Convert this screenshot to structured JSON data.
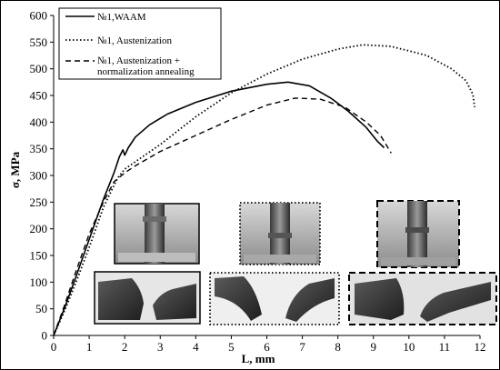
{
  "chart_data": {
    "type": "line",
    "title": "",
    "xlabel": "L, mm",
    "ylabel": "σ, MPa",
    "xlim": [
      0,
      12
    ],
    "ylim": [
      0,
      600
    ],
    "x_ticks": [
      0,
      1,
      2,
      3,
      4,
      5,
      6,
      7,
      8,
      9,
      10,
      11,
      12
    ],
    "y_ticks": [
      0,
      50,
      100,
      150,
      200,
      250,
      300,
      350,
      400,
      450,
      500,
      550,
      600
    ],
    "grid": false,
    "legend_position": "top-left",
    "series": [
      {
        "name": "№1,WAAM",
        "style": "solid",
        "points": [
          [
            0,
            0
          ],
          [
            0.3,
            50
          ],
          [
            0.6,
            105
          ],
          [
            1.0,
            180
          ],
          [
            1.4,
            255
          ],
          [
            1.7,
            305
          ],
          [
            1.85,
            335
          ],
          [
            1.95,
            348
          ],
          [
            2.0,
            338
          ],
          [
            2.1,
            352
          ],
          [
            2.3,
            372
          ],
          [
            2.7,
            395
          ],
          [
            3.2,
            415
          ],
          [
            4.0,
            437
          ],
          [
            5.0,
            458
          ],
          [
            6.0,
            471
          ],
          [
            6.6,
            475
          ],
          [
            7.2,
            468
          ],
          [
            7.8,
            445
          ],
          [
            8.3,
            420
          ],
          [
            8.8,
            390
          ],
          [
            9.1,
            365
          ],
          [
            9.3,
            352
          ]
        ]
      },
      {
        "name": "№1, Austenization",
        "style": "dotted",
        "points": [
          [
            0,
            0
          ],
          [
            0.3,
            45
          ],
          [
            0.6,
            95
          ],
          [
            1.0,
            165
          ],
          [
            1.4,
            240
          ],
          [
            1.8,
            295
          ],
          [
            2.0,
            312
          ],
          [
            2.5,
            335
          ],
          [
            3.0,
            358
          ],
          [
            4.0,
            410
          ],
          [
            5.0,
            455
          ],
          [
            6.0,
            490
          ],
          [
            7.0,
            518
          ],
          [
            8.0,
            537
          ],
          [
            8.7,
            545
          ],
          [
            9.5,
            542
          ],
          [
            10.5,
            525
          ],
          [
            11.2,
            500
          ],
          [
            11.6,
            478
          ],
          [
            11.8,
            452
          ],
          [
            11.85,
            428
          ]
        ]
      },
      {
        "name": "№1, Austenization + normalization annealing",
        "name_lines": [
          "№1, Austenization +",
          "normalization annealing"
        ],
        "style": "dashed",
        "points": [
          [
            0,
            0
          ],
          [
            0.3,
            55
          ],
          [
            0.6,
            115
          ],
          [
            1.0,
            190
          ],
          [
            1.4,
            250
          ],
          [
            1.7,
            288
          ],
          [
            2.0,
            305
          ],
          [
            2.3,
            318
          ],
          [
            3.0,
            345
          ],
          [
            4.0,
            375
          ],
          [
            5.0,
            405
          ],
          [
            6.0,
            432
          ],
          [
            6.8,
            445
          ],
          [
            7.5,
            443
          ],
          [
            8.2,
            428
          ],
          [
            8.8,
            400
          ],
          [
            9.2,
            375
          ],
          [
            9.5,
            342
          ]
        ]
      }
    ]
  },
  "insets": [
    {
      "name": "waam-top-photo",
      "border": "solid"
    },
    {
      "name": "austenization-top-photo",
      "border": "dotted"
    },
    {
      "name": "annealing-top-photo",
      "border": "dashed"
    },
    {
      "name": "waam-fracture-photo",
      "border": "solid"
    },
    {
      "name": "austenization-fracture-photo",
      "border": "dotted"
    },
    {
      "name": "annealing-fracture-photo",
      "border": "dashed"
    }
  ]
}
